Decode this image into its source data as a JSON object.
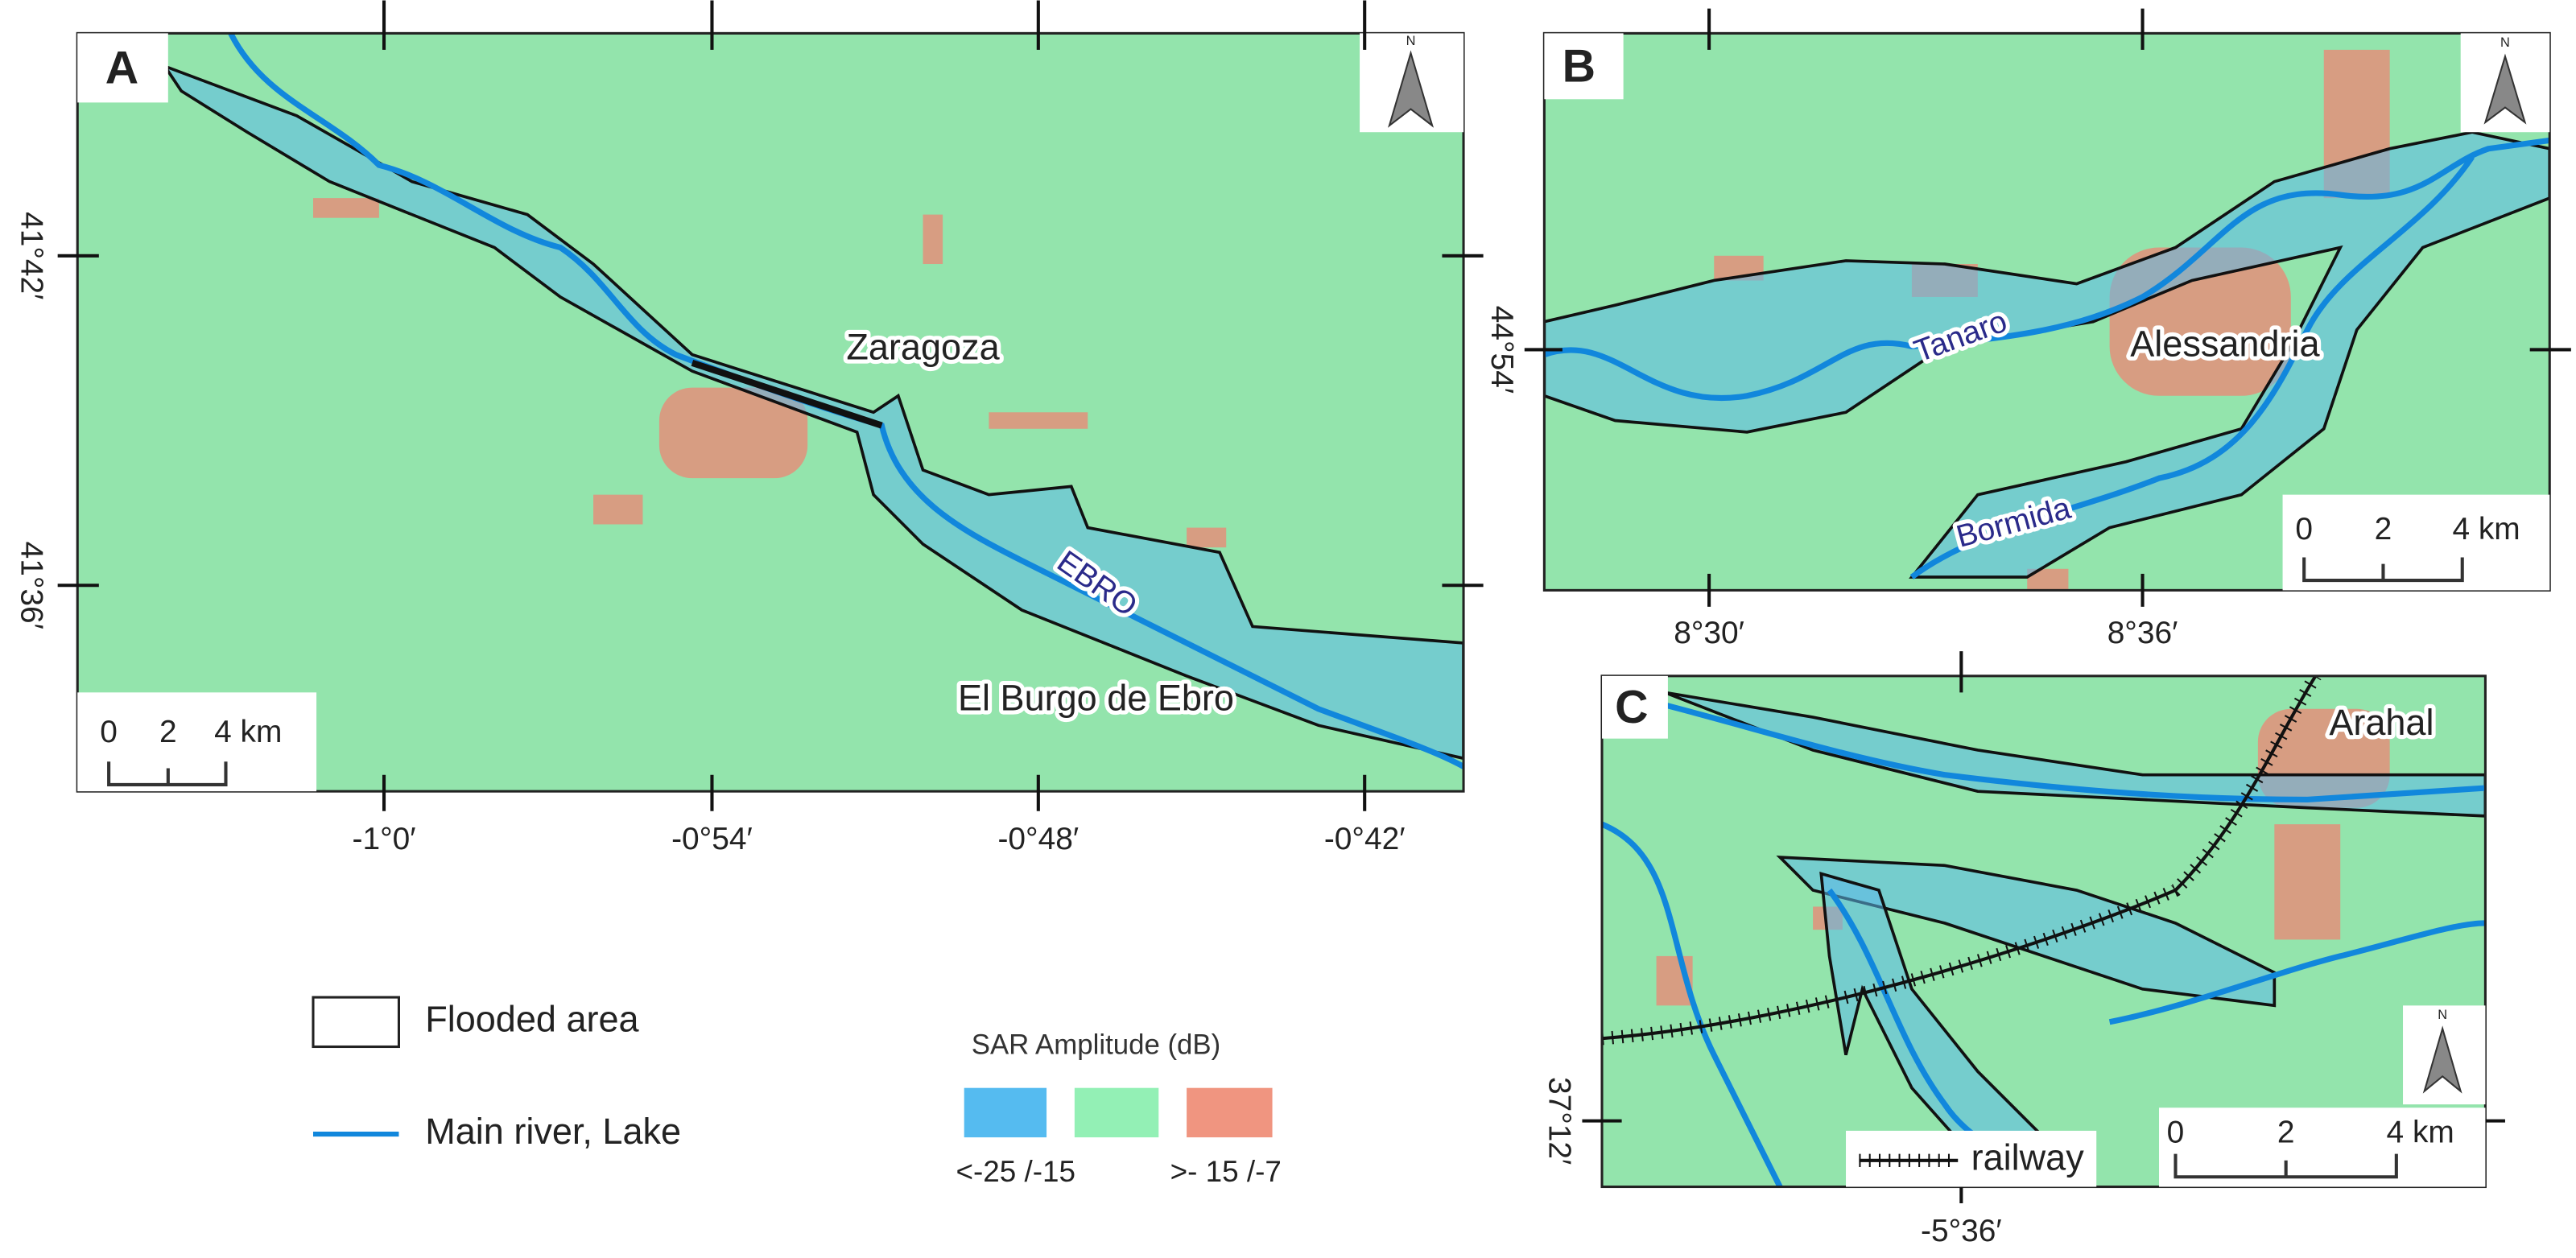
{
  "panels": [
    {
      "label": "A",
      "north_label": "N",
      "places": [
        "Zaragoza",
        "El Burgo de Ebro"
      ],
      "rivers": [
        "EBRO"
      ],
      "x_ticks": [
        "-1°0′",
        "-0°54′",
        "-0°48′",
        "-0°42′"
      ],
      "y_ticks": [
        "41°42′",
        "41°36′"
      ],
      "scale_bar": [
        "0",
        "2",
        "4 km"
      ]
    },
    {
      "label": "B",
      "north_label": "N",
      "places": [
        "Alessandria"
      ],
      "rivers": [
        "Tanaro",
        "Bormida"
      ],
      "x_ticks": [
        "8°30′",
        "8°36′"
      ],
      "y_ticks": [
        "44°54′"
      ],
      "scale_bar": [
        "0",
        "2",
        "4 km"
      ]
    },
    {
      "label": "C",
      "north_label": "N",
      "places": [
        "Arahal"
      ],
      "rivers": [],
      "x_ticks": [
        "-5°36′"
      ],
      "y_ticks": [
        "37°12′"
      ],
      "railway": "railway",
      "scale_bar": [
        "0",
        "2",
        "4 km"
      ]
    }
  ],
  "legend": {
    "flooded": "Flooded area",
    "river": "Main river, Lake",
    "sar_title": "SAR Amplitude (dB)",
    "sar_low": "<-25 /-15",
    "sar_high": ">- 15 /-7"
  }
}
